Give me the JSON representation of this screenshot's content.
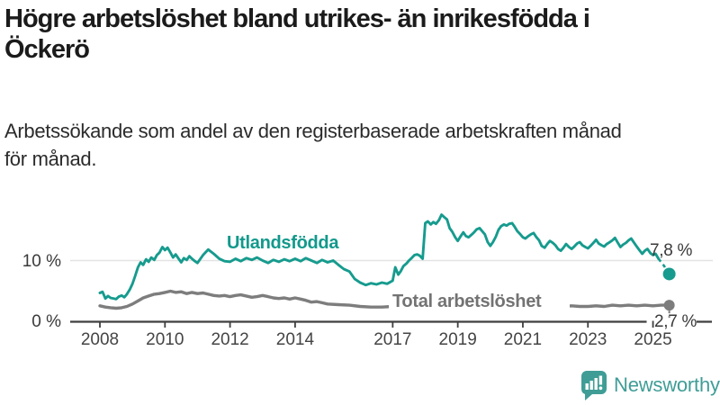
{
  "header": {
    "title": "Högre arbetslöshet bland utrikes- än inrikesfödda i\nÖckerö",
    "subtitle": "Arbetssökande som andel av den registerbaserade arbetskraften månad\nför månad."
  },
  "footer": {
    "brand": "Newsworthy",
    "brand_color": "#3f9d96"
  },
  "chart_data": {
    "type": "line",
    "title": "Högre arbetslöshet bland utrikes- än inrikesfödda i Öckerö",
    "subtitle": "Arbetssökande som andel av den registerbaserade arbetskraften månad för månad.",
    "x_axis": {
      "unit": "year",
      "range": [
        2008,
        2025.6
      ],
      "ticks": [
        2008,
        2010,
        2012,
        2014,
        2017,
        2019,
        2021,
        2023,
        2025
      ]
    },
    "y_axis": {
      "unit": "%",
      "range": [
        0,
        18.5
      ],
      "gridlines": [
        10
      ],
      "ticks": [
        {
          "value": 0,
          "label": "0 %"
        },
        {
          "value": 10,
          "label": "10 %"
        }
      ]
    },
    "grid": "horizontal-only",
    "legend": "inline-labels",
    "series": [
      {
        "name": "Utlandsfödda",
        "color": "#169b8e",
        "end_label": "7,8 %",
        "end_value": 7.8,
        "points": [
          [
            2008.0,
            4.7
          ],
          [
            2008.08,
            4.9
          ],
          [
            2008.17,
            3.8
          ],
          [
            2008.25,
            4.2
          ],
          [
            2008.33,
            3.9
          ],
          [
            2008.5,
            3.7
          ],
          [
            2008.58,
            4.1
          ],
          [
            2008.67,
            4.3
          ],
          [
            2008.75,
            4.0
          ],
          [
            2008.83,
            4.5
          ],
          [
            2008.92,
            5.3
          ],
          [
            2009.0,
            6.2
          ],
          [
            2009.08,
            7.4
          ],
          [
            2009.17,
            8.9
          ],
          [
            2009.25,
            9.7
          ],
          [
            2009.33,
            9.3
          ],
          [
            2009.42,
            10.2
          ],
          [
            2009.5,
            9.8
          ],
          [
            2009.58,
            10.5
          ],
          [
            2009.67,
            10.1
          ],
          [
            2009.75,
            10.9
          ],
          [
            2009.83,
            11.3
          ],
          [
            2009.92,
            12.2
          ],
          [
            2010.0,
            11.7
          ],
          [
            2010.08,
            12.1
          ],
          [
            2010.17,
            11.3
          ],
          [
            2010.25,
            10.5
          ],
          [
            2010.33,
            11.0
          ],
          [
            2010.42,
            10.3
          ],
          [
            2010.5,
            9.7
          ],
          [
            2010.58,
            10.4
          ],
          [
            2010.67,
            10.1
          ],
          [
            2010.75,
            10.7
          ],
          [
            2010.83,
            10.3
          ],
          [
            2010.92,
            9.9
          ],
          [
            2011.0,
            9.6
          ],
          [
            2011.17,
            10.9
          ],
          [
            2011.33,
            11.8
          ],
          [
            2011.5,
            11.1
          ],
          [
            2011.67,
            10.3
          ],
          [
            2011.83,
            9.9
          ],
          [
            2012.0,
            9.8
          ],
          [
            2012.17,
            10.3
          ],
          [
            2012.33,
            9.9
          ],
          [
            2012.5,
            10.4
          ],
          [
            2012.67,
            10.1
          ],
          [
            2012.83,
            10.5
          ],
          [
            2013.0,
            10.0
          ],
          [
            2013.17,
            9.6
          ],
          [
            2013.33,
            10.1
          ],
          [
            2013.5,
            9.8
          ],
          [
            2013.67,
            10.2
          ],
          [
            2013.83,
            9.9
          ],
          [
            2014.0,
            10.3
          ],
          [
            2014.17,
            9.9
          ],
          [
            2014.33,
            10.4
          ],
          [
            2014.5,
            10.0
          ],
          [
            2014.67,
            9.6
          ],
          [
            2014.83,
            10.1
          ],
          [
            2015.0,
            9.7
          ],
          [
            2015.17,
            10.0
          ],
          [
            2015.33,
            9.3
          ],
          [
            2015.5,
            8.6
          ],
          [
            2015.67,
            8.2
          ],
          [
            2015.83,
            7.0
          ],
          [
            2016.0,
            6.4
          ],
          [
            2016.17,
            6.0
          ],
          [
            2016.33,
            6.3
          ],
          [
            2016.5,
            6.1
          ],
          [
            2016.67,
            6.4
          ],
          [
            2016.83,
            6.2
          ],
          [
            2017.0,
            6.7
          ],
          [
            2017.08,
            8.9
          ],
          [
            2017.17,
            7.7
          ],
          [
            2017.25,
            8.3
          ],
          [
            2017.33,
            9.1
          ],
          [
            2017.42,
            9.5
          ],
          [
            2017.5,
            10.0
          ],
          [
            2017.58,
            10.4
          ],
          [
            2017.67,
            10.9
          ],
          [
            2017.75,
            11.0
          ],
          [
            2017.83,
            10.8
          ],
          [
            2017.92,
            10.3
          ],
          [
            2018.0,
            16.1
          ],
          [
            2018.08,
            16.4
          ],
          [
            2018.17,
            15.9
          ],
          [
            2018.25,
            16.3
          ],
          [
            2018.33,
            16.0
          ],
          [
            2018.42,
            16.6
          ],
          [
            2018.5,
            17.5
          ],
          [
            2018.58,
            17.1
          ],
          [
            2018.67,
            16.7
          ],
          [
            2018.75,
            15.3
          ],
          [
            2018.83,
            14.7
          ],
          [
            2018.92,
            13.8
          ],
          [
            2019.0,
            13.2
          ],
          [
            2019.08,
            13.9
          ],
          [
            2019.17,
            14.6
          ],
          [
            2019.25,
            14.0
          ],
          [
            2019.33,
            13.8
          ],
          [
            2019.42,
            14.2
          ],
          [
            2019.5,
            14.6
          ],
          [
            2019.58,
            15.1
          ],
          [
            2019.67,
            15.3
          ],
          [
            2019.75,
            14.8
          ],
          [
            2019.83,
            14.3
          ],
          [
            2019.92,
            13.0
          ],
          [
            2020.0,
            12.4
          ],
          [
            2020.08,
            13.0
          ],
          [
            2020.17,
            13.9
          ],
          [
            2020.25,
            15.0
          ],
          [
            2020.33,
            15.6
          ],
          [
            2020.42,
            15.9
          ],
          [
            2020.5,
            15.7
          ],
          [
            2020.58,
            16.0
          ],
          [
            2020.67,
            16.1
          ],
          [
            2020.75,
            15.5
          ],
          [
            2020.83,
            14.8
          ],
          [
            2020.92,
            14.3
          ],
          [
            2021.0,
            13.8
          ],
          [
            2021.08,
            13.6
          ],
          [
            2021.17,
            14.0
          ],
          [
            2021.25,
            14.3
          ],
          [
            2021.33,
            14.5
          ],
          [
            2021.42,
            13.8
          ],
          [
            2021.5,
            13.3
          ],
          [
            2021.58,
            12.4
          ],
          [
            2021.67,
            12.1
          ],
          [
            2021.75,
            12.7
          ],
          [
            2021.83,
            13.2
          ],
          [
            2021.92,
            12.9
          ],
          [
            2022.0,
            12.5
          ],
          [
            2022.08,
            11.9
          ],
          [
            2022.17,
            11.6
          ],
          [
            2022.25,
            12.1
          ],
          [
            2022.33,
            12.7
          ],
          [
            2022.42,
            12.2
          ],
          [
            2022.5,
            11.9
          ],
          [
            2022.58,
            12.3
          ],
          [
            2022.67,
            12.8
          ],
          [
            2022.75,
            13.0
          ],
          [
            2022.83,
            12.5
          ],
          [
            2022.92,
            12.2
          ],
          [
            2023.0,
            12.0
          ],
          [
            2023.08,
            12.4
          ],
          [
            2023.17,
            12.9
          ],
          [
            2023.25,
            13.4
          ],
          [
            2023.33,
            12.8
          ],
          [
            2023.42,
            12.5
          ],
          [
            2023.5,
            12.3
          ],
          [
            2023.58,
            12.7
          ],
          [
            2023.67,
            13.0
          ],
          [
            2023.75,
            13.3
          ],
          [
            2023.83,
            13.7
          ],
          [
            2023.92,
            12.9
          ],
          [
            2024.0,
            12.2
          ],
          [
            2024.08,
            12.6
          ],
          [
            2024.17,
            12.9
          ],
          [
            2024.25,
            13.3
          ],
          [
            2024.33,
            13.6
          ],
          [
            2024.42,
            12.9
          ],
          [
            2024.5,
            12.3
          ],
          [
            2024.58,
            11.7
          ],
          [
            2024.67,
            11.1
          ],
          [
            2024.75,
            11.6
          ],
          [
            2024.83,
            11.9
          ],
          [
            2024.92,
            11.2
          ],
          [
            2025.0,
            10.9
          ],
          [
            2025.08,
            11.1
          ],
          [
            2025.17,
            10.3
          ]
        ],
        "dashed_tail": [
          [
            2025.17,
            10.3
          ],
          [
            2025.33,
            9.2
          ],
          [
            2025.5,
            7.8
          ]
        ]
      },
      {
        "name": "Total arbetslöshet",
        "color": "#7d7d7d",
        "end_label": "2,7 %",
        "end_value": 2.7,
        "points": [
          [
            2008.0,
            2.6
          ],
          [
            2008.17,
            2.4
          ],
          [
            2008.33,
            2.3
          ],
          [
            2008.5,
            2.2
          ],
          [
            2008.67,
            2.3
          ],
          [
            2008.83,
            2.5
          ],
          [
            2009.0,
            2.9
          ],
          [
            2009.17,
            3.4
          ],
          [
            2009.33,
            3.9
          ],
          [
            2009.5,
            4.2
          ],
          [
            2009.67,
            4.5
          ],
          [
            2009.83,
            4.6
          ],
          [
            2010.0,
            4.8
          ],
          [
            2010.17,
            5.0
          ],
          [
            2010.33,
            4.8
          ],
          [
            2010.5,
            4.9
          ],
          [
            2010.67,
            4.6
          ],
          [
            2010.83,
            4.8
          ],
          [
            2011.0,
            4.6
          ],
          [
            2011.17,
            4.7
          ],
          [
            2011.33,
            4.5
          ],
          [
            2011.5,
            4.3
          ],
          [
            2011.67,
            4.2
          ],
          [
            2011.83,
            4.3
          ],
          [
            2012.0,
            4.1
          ],
          [
            2012.17,
            4.3
          ],
          [
            2012.33,
            4.4
          ],
          [
            2012.5,
            4.2
          ],
          [
            2012.67,
            4.0
          ],
          [
            2012.83,
            4.1
          ],
          [
            2013.0,
            4.3
          ],
          [
            2013.17,
            4.1
          ],
          [
            2013.33,
            3.9
          ],
          [
            2013.5,
            3.8
          ],
          [
            2013.67,
            3.9
          ],
          [
            2013.83,
            3.7
          ],
          [
            2014.0,
            3.9
          ],
          [
            2014.17,
            3.7
          ],
          [
            2014.33,
            3.5
          ],
          [
            2014.5,
            3.2
          ],
          [
            2014.67,
            3.3
          ],
          [
            2014.83,
            3.1
          ],
          [
            2015.0,
            2.9
          ],
          [
            2015.33,
            2.8
          ],
          [
            2015.67,
            2.7
          ],
          [
            2016.0,
            2.5
          ],
          [
            2016.33,
            2.4
          ],
          [
            2016.67,
            2.4
          ],
          [
            2017.0,
            2.5
          ],
          [
            2017.33,
            2.6
          ],
          [
            2017.67,
            2.5
          ],
          [
            2018.0,
            2.7
          ],
          [
            2018.33,
            2.6
          ],
          [
            2018.67,
            2.5
          ],
          [
            2019.0,
            2.6
          ],
          [
            2019.33,
            2.7
          ],
          [
            2019.67,
            2.6
          ],
          [
            2020.0,
            2.8
          ],
          [
            2020.25,
            3.1
          ],
          [
            2020.5,
            3.3
          ],
          [
            2020.75,
            3.1
          ],
          [
            2021.0,
            3.0
          ],
          [
            2021.33,
            2.9
          ],
          [
            2021.67,
            2.7
          ],
          [
            2022.0,
            2.6
          ],
          [
            2022.25,
            2.5
          ],
          [
            2022.5,
            2.6
          ],
          [
            2022.75,
            2.5
          ],
          [
            2023.0,
            2.5
          ],
          [
            2023.25,
            2.6
          ],
          [
            2023.5,
            2.5
          ],
          [
            2023.75,
            2.7
          ],
          [
            2024.0,
            2.6
          ],
          [
            2024.25,
            2.7
          ],
          [
            2024.5,
            2.6
          ],
          [
            2024.75,
            2.7
          ],
          [
            2025.0,
            2.6
          ],
          [
            2025.25,
            2.7
          ],
          [
            2025.5,
            2.7
          ]
        ],
        "dashed_tail": []
      }
    ]
  }
}
